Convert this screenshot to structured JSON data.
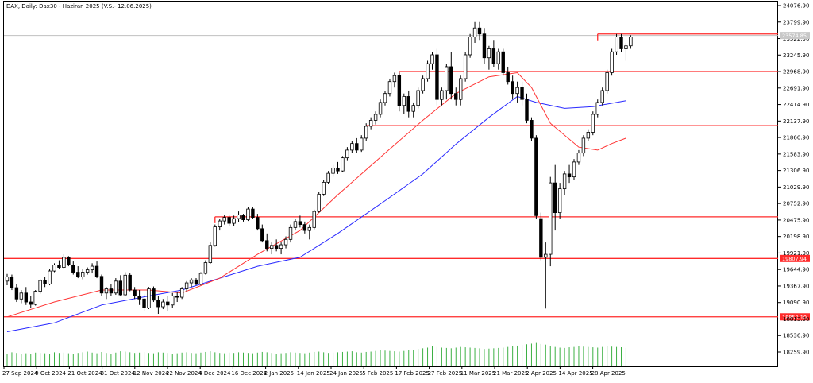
{
  "chart_data": {
    "type": "candlestick",
    "title": "DAX, Daily: Dax30 - Haziran 2025 (V.S.- 12.06.2025)",
    "current_price_label": "23574.85",
    "y_ticks": [
      "24076.90",
      "23799.90",
      "23522.90",
      "23245.90",
      "22968.90",
      "22691.90",
      "22414.90",
      "22137.90",
      "21860.90",
      "21583.90",
      "21306.90",
      "21029.90",
      "20752.90",
      "20475.90",
      "20198.90",
      "19921.90",
      "19644.90",
      "19367.90",
      "19090.90",
      "18813.90",
      "18536.90",
      "18259.90"
    ],
    "x_ticks": [
      "27 Sep 2024",
      "9 Oct 2024",
      "21 Oct 2024",
      "31 Oct 2024",
      "12 Nov 2024",
      "22 Nov 2024",
      "4 Dec 2024",
      "16 Dec 2024",
      "2 Jan 2025",
      "14 Jan 2025",
      "24 Jan 2025",
      "5 Feb 2025",
      "17 Feb 2025",
      "27 Feb 2025",
      "11 Mar 2025",
      "21 Mar 2025",
      "2 Apr 2025",
      "14 Apr 2025",
      "28 Apr 2025"
    ],
    "ylim": [
      18150,
      24150
    ],
    "horizontal_levels": [
      {
        "value": 23600
      },
      {
        "value": 22970
      },
      {
        "value": 22060
      },
      {
        "value": 20530
      },
      {
        "value": 19830,
        "label": "19807.94"
      },
      {
        "value": 18850,
        "label": "18850.10"
      }
    ],
    "candles": [
      [
        19450,
        19570,
        19380,
        19520
      ],
      [
        19520,
        19560,
        19300,
        19340
      ],
      [
        19340,
        19400,
        19100,
        19150
      ],
      [
        19150,
        19300,
        19080,
        19250
      ],
      [
        19250,
        19350,
        19050,
        19100
      ],
      [
        19100,
        19200,
        19000,
        19060
      ],
      [
        19060,
        19300,
        19040,
        19280
      ],
      [
        19280,
        19480,
        19240,
        19460
      ],
      [
        19460,
        19520,
        19350,
        19400
      ],
      [
        19400,
        19650,
        19380,
        19620
      ],
      [
        19620,
        19750,
        19600,
        19720
      ],
      [
        19720,
        19800,
        19650,
        19680
      ],
      [
        19680,
        19900,
        19660,
        19850
      ],
      [
        19850,
        19870,
        19700,
        19720
      ],
      [
        19720,
        19780,
        19560,
        19600
      ],
      [
        19600,
        19700,
        19500,
        19520
      ],
      [
        19520,
        19650,
        19480,
        19600
      ],
      [
        19600,
        19680,
        19560,
        19640
      ],
      [
        19640,
        19750,
        19580,
        19700
      ],
      [
        19700,
        19780,
        19500,
        19530
      ],
      [
        19530,
        19560,
        19200,
        19250
      ],
      [
        19250,
        19350,
        19150,
        19320
      ],
      [
        19320,
        19400,
        19200,
        19250
      ],
      [
        19250,
        19500,
        19220,
        19450
      ],
      [
        19450,
        19550,
        19200,
        19220
      ],
      [
        19220,
        19600,
        19200,
        19550
      ],
      [
        19550,
        19580,
        19280,
        19300
      ],
      [
        19300,
        19350,
        19150,
        19200
      ],
      [
        19200,
        19300,
        19050,
        19150
      ],
      [
        19150,
        19230,
        18950,
        19000
      ],
      [
        19000,
        19350,
        18980,
        19320
      ],
      [
        19320,
        19360,
        19100,
        19130
      ],
      [
        19130,
        19200,
        18900,
        19020
      ],
      [
        19020,
        19150,
        18980,
        19100
      ],
      [
        19100,
        19200,
        18950,
        19050
      ],
      [
        19050,
        19250,
        19000,
        19200
      ],
      [
        19200,
        19260,
        19100,
        19180
      ],
      [
        19180,
        19350,
        19150,
        19320
      ],
      [
        19320,
        19450,
        19280,
        19420
      ],
      [
        19420,
        19500,
        19350,
        19470
      ],
      [
        19470,
        19500,
        19380,
        19400
      ],
      [
        19400,
        19600,
        19380,
        19580
      ],
      [
        19580,
        19800,
        19560,
        19760
      ],
      [
        19760,
        20100,
        19740,
        20050
      ],
      [
        20050,
        20400,
        20030,
        20360
      ],
      [
        20360,
        20500,
        20300,
        20460
      ],
      [
        20460,
        20560,
        20400,
        20520
      ],
      [
        20520,
        20550,
        20380,
        20420
      ],
      [
        20420,
        20550,
        20380,
        20500
      ],
      [
        20500,
        20620,
        20440,
        20560
      ],
      [
        20560,
        20580,
        20450,
        20480
      ],
      [
        20480,
        20700,
        20460,
        20660
      ],
      [
        20660,
        20690,
        20500,
        20520
      ],
      [
        20520,
        20580,
        20300,
        20330
      ],
      [
        20330,
        20400,
        20100,
        20130
      ],
      [
        20130,
        20250,
        19950,
        20000
      ],
      [
        20000,
        20100,
        19900,
        20050
      ],
      [
        20050,
        20150,
        19950,
        20000
      ],
      [
        20000,
        20100,
        19900,
        20060
      ],
      [
        20060,
        20200,
        20000,
        20150
      ],
      [
        20150,
        20400,
        20100,
        20350
      ],
      [
        20350,
        20500,
        20300,
        20450
      ],
      [
        20450,
        20550,
        20350,
        20400
      ],
      [
        20400,
        20450,
        20250,
        20300
      ],
      [
        20300,
        20400,
        20150,
        20350
      ],
      [
        20350,
        20650,
        20320,
        20620
      ],
      [
        20620,
        20950,
        20600,
        20910
      ],
      [
        20910,
        21150,
        20880,
        21110
      ],
      [
        21110,
        21300,
        21080,
        21260
      ],
      [
        21260,
        21400,
        21200,
        21350
      ],
      [
        21350,
        21450,
        21250,
        21300
      ],
      [
        21300,
        21550,
        21280,
        21520
      ],
      [
        21520,
        21700,
        21480,
        21650
      ],
      [
        21650,
        21800,
        21600,
        21760
      ],
      [
        21760,
        21850,
        21600,
        21650
      ],
      [
        21650,
        21900,
        21620,
        21850
      ],
      [
        21850,
        22100,
        21800,
        22050
      ],
      [
        22050,
        22200,
        22000,
        22150
      ],
      [
        22150,
        22300,
        22080,
        22250
      ],
      [
        22250,
        22500,
        22200,
        22450
      ],
      [
        22450,
        22650,
        22400,
        22600
      ],
      [
        22600,
        22850,
        22550,
        22800
      ],
      [
        22800,
        22950,
        22700,
        22900
      ],
      [
        22900,
        22950,
        22300,
        22400
      ],
      [
        22400,
        22600,
        22250,
        22550
      ],
      [
        22550,
        22650,
        22200,
        22300
      ],
      [
        22300,
        22450,
        22200,
        22400
      ],
      [
        22400,
        22700,
        22350,
        22650
      ],
      [
        22650,
        22900,
        22600,
        22850
      ],
      [
        22850,
        23150,
        22800,
        23100
      ],
      [
        23100,
        23300,
        23000,
        23250
      ],
      [
        23250,
        23350,
        22400,
        22500
      ],
      [
        22500,
        22700,
        22400,
        22650
      ],
      [
        22650,
        23100,
        22500,
        23050
      ],
      [
        23050,
        23300,
        22500,
        22600
      ],
      [
        22600,
        22700,
        22400,
        22500
      ],
      [
        22500,
        22900,
        22400,
        22850
      ],
      [
        22850,
        23300,
        22800,
        23250
      ],
      [
        23250,
        23600,
        23200,
        23550
      ],
      [
        23550,
        23800,
        23450,
        23700
      ],
      [
        23700,
        23800,
        23500,
        23600
      ],
      [
        23600,
        23700,
        23100,
        23200
      ],
      [
        23200,
        23400,
        23000,
        23350
      ],
      [
        23350,
        23500,
        23050,
        23100
      ],
      [
        23100,
        23350,
        23000,
        23300
      ],
      [
        23300,
        23350,
        22900,
        22950
      ],
      [
        22950,
        23050,
        22750,
        22800
      ],
      [
        22800,
        22900,
        22500,
        22600
      ],
      [
        22600,
        22800,
        22450,
        22700
      ],
      [
        22700,
        22800,
        22400,
        22500
      ],
      [
        22500,
        22600,
        22100,
        22150
      ],
      [
        22150,
        22200,
        21800,
        21850
      ],
      [
        21850,
        21900,
        20500,
        20550
      ],
      [
        20500,
        20600,
        19800,
        19850
      ],
      [
        19850,
        20100,
        18990,
        19900
      ],
      [
        19900,
        21200,
        19700,
        21100
      ],
      [
        21100,
        21400,
        20300,
        20600
      ],
      [
        20600,
        21100,
        20500,
        21000
      ],
      [
        21000,
        21300,
        20900,
        21250
      ],
      [
        21250,
        21400,
        21100,
        21200
      ],
      [
        21200,
        21500,
        21150,
        21450
      ],
      [
        21450,
        21650,
        21400,
        21600
      ],
      [
        21600,
        21900,
        21550,
        21850
      ],
      [
        21850,
        22000,
        21800,
        21950
      ],
      [
        21950,
        22300,
        21900,
        22250
      ],
      [
        22250,
        22500,
        22200,
        22450
      ],
      [
        22450,
        22700,
        22400,
        22650
      ],
      [
        22650,
        23000,
        22600,
        22950
      ],
      [
        22950,
        23350,
        22900,
        23300
      ],
      [
        23300,
        23600,
        23250,
        23550
      ],
      [
        23550,
        23600,
        23300,
        23350
      ],
      [
        23350,
        23450,
        23150,
        23400
      ],
      [
        23400,
        23580,
        23350,
        23550
      ]
    ],
    "ma_fast": [
      [
        0,
        18850
      ],
      [
        10,
        19100
      ],
      [
        20,
        19300
      ],
      [
        30,
        19300
      ],
      [
        37,
        19250
      ],
      [
        45,
        19500
      ],
      [
        53,
        19900
      ],
      [
        62,
        20300
      ],
      [
        70,
        20900
      ],
      [
        80,
        21600
      ],
      [
        88,
        22150
      ],
      [
        95,
        22600
      ],
      [
        102,
        22880
      ],
      [
        108,
        22950
      ],
      [
        111,
        22700
      ],
      [
        115,
        22100
      ],
      [
        121,
        21700
      ],
      [
        125,
        21650
      ],
      [
        128,
        21760
      ],
      [
        131,
        21850
      ]
    ],
    "ma_slow": [
      [
        0,
        18600
      ],
      [
        10,
        18750
      ],
      [
        20,
        19050
      ],
      [
        30,
        19200
      ],
      [
        37,
        19300
      ],
      [
        45,
        19500
      ],
      [
        53,
        19700
      ],
      [
        62,
        19850
      ],
      [
        70,
        20250
      ],
      [
        80,
        20800
      ],
      [
        88,
        21250
      ],
      [
        95,
        21750
      ],
      [
        102,
        22200
      ],
      [
        108,
        22550
      ],
      [
        112,
        22450
      ],
      [
        118,
        22350
      ],
      [
        124,
        22380
      ],
      [
        131,
        22480
      ]
    ],
    "volume": [
      38,
      42,
      40,
      38,
      39,
      37,
      41,
      40,
      39,
      38,
      42,
      40,
      41,
      39,
      38,
      40,
      42,
      44,
      41,
      39,
      43,
      40,
      38,
      41,
      45,
      44,
      42,
      40,
      41,
      43,
      40,
      39,
      42,
      41,
      40,
      38,
      39,
      41,
      42,
      40,
      39,
      41,
      43,
      45,
      42,
      40,
      39,
      41,
      40,
      42,
      41,
      40,
      39,
      41,
      43,
      42,
      40,
      38,
      39,
      40,
      42,
      41,
      40,
      39,
      41,
      43,
      44,
      42,
      40,
      41,
      42,
      43,
      44,
      45,
      42,
      41,
      43,
      44,
      46,
      48,
      47,
      46,
      45,
      44,
      46,
      48,
      50,
      52,
      54,
      56,
      60,
      58,
      56,
      55,
      54,
      56,
      58,
      57,
      56,
      55,
      54,
      52,
      53,
      54,
      55,
      56,
      58,
      60,
      62,
      64,
      66,
      68,
      70,
      67,
      65,
      60,
      58,
      56,
      55,
      57,
      58,
      60,
      59,
      58,
      57,
      56,
      58,
      60,
      59,
      58,
      57,
      55
    ]
  }
}
